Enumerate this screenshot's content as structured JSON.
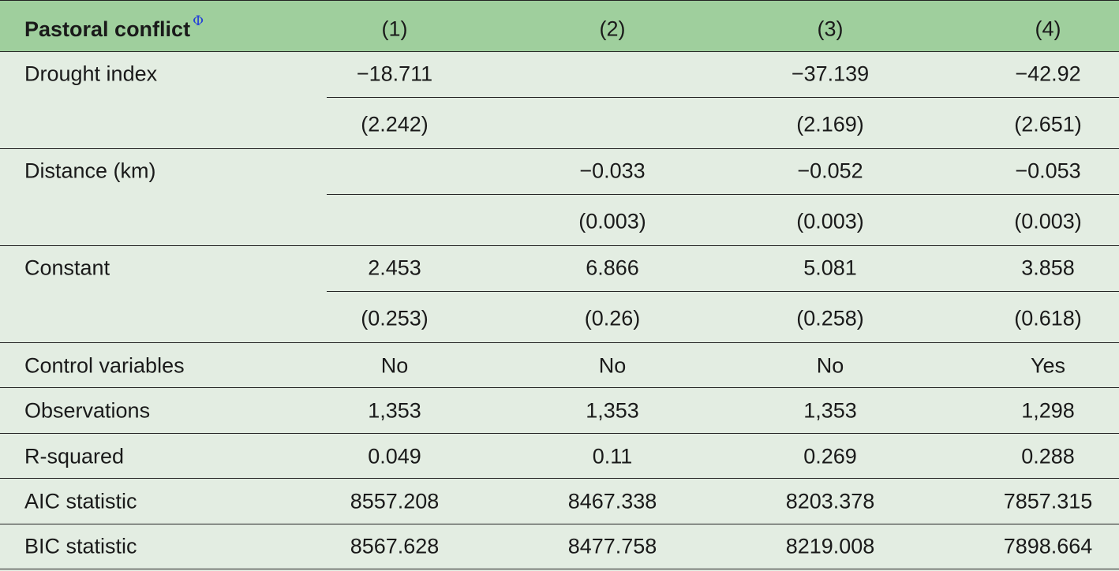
{
  "table": {
    "header": {
      "title": "Pastoral conflict",
      "superscript": "Φ",
      "columns": [
        "(1)",
        "(2)",
        "(3)",
        "(4)"
      ]
    },
    "groups": [
      {
        "label": "Drought index",
        "coef": [
          "−18.711",
          null,
          "−37.139",
          "−42.92"
        ],
        "se": [
          "(2.242)",
          null,
          "(2.169)",
          "(2.651)"
        ]
      },
      {
        "label": "Distance (km)",
        "coef": [
          null,
          "−0.033",
          "−0.052",
          "−0.053"
        ],
        "se": [
          null,
          "(0.003)",
          "(0.003)",
          "(0.003)"
        ]
      },
      {
        "label": "Constant",
        "coef": [
          "2.453",
          "6.866",
          "5.081",
          "3.858"
        ],
        "se": [
          "(0.253)",
          "(0.26)",
          "(0.258)",
          "(0.618)"
        ]
      }
    ],
    "rows": [
      {
        "label": "Control variables",
        "values": [
          "No",
          "No",
          "No",
          "Yes"
        ]
      },
      {
        "label": "Observations",
        "values": [
          "1,353",
          "1,353",
          "1,353",
          "1,298"
        ]
      },
      {
        "label": "R-squared",
        "values": [
          "0.049",
          "0.11",
          "0.269",
          "0.288"
        ]
      },
      {
        "label": "AIC statistic",
        "values": [
          "8557.208",
          "8467.338",
          "8203.378",
          "7857.315"
        ]
      },
      {
        "label": "BIC statistic",
        "values": [
          "8567.628",
          "8477.758",
          "8219.008",
          "7898.664"
        ]
      }
    ]
  }
}
